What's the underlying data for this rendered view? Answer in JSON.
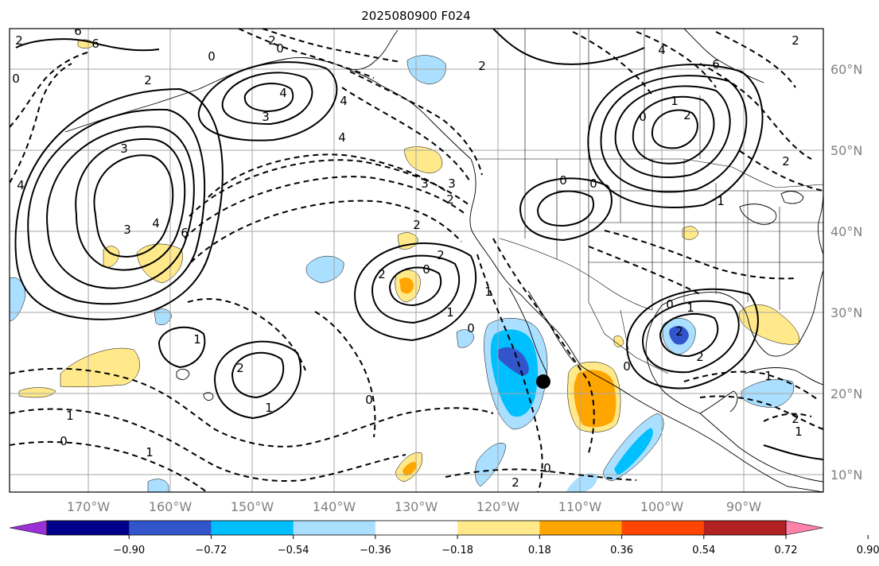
{
  "title": "2025080900 F024",
  "lon_labels": [
    "170°W",
    "160°W",
    "150°W",
    "140°W",
    "130°W",
    "120°W",
    "110°W",
    "100°W",
    "90°W"
  ],
  "lat_labels": [
    "60°N",
    "50°N",
    "40°N",
    "30°N",
    "20°N",
    "10°N"
  ],
  "colorbar": {
    "ticks": [
      "−0.90",
      "−0.72",
      "−0.54",
      "−0.36",
      "−0.18",
      "0.18",
      "0.36",
      "0.54",
      "0.72",
      "0.90"
    ],
    "colors": [
      "#9b30d8",
      "#00008b",
      "#3355cc",
      "#00bfff",
      "#aadfff",
      "#ffffff",
      "#ffe98a",
      "#ffa500",
      "#ff4500",
      "#b22222",
      "#ff82a9"
    ]
  },
  "marker": {
    "label": "location-marker"
  },
  "contour_labels": [
    "6",
    "0",
    "2",
    "0",
    "2",
    "4",
    "3",
    "4",
    "4",
    "3",
    "4",
    "3",
    "6",
    "4",
    "0",
    "3",
    "2",
    "2",
    "2",
    "0",
    "2",
    "1",
    "0",
    "1",
    "2",
    "1",
    "1",
    "0",
    "1",
    "0",
    "1",
    "2",
    "1",
    "0",
    "0",
    "1",
    "2",
    "2",
    "0",
    "4",
    "6",
    "2",
    "2",
    "1",
    "1",
    "0",
    "2",
    "2",
    "1",
    "0",
    "0",
    "2",
    "3",
    "2",
    "6"
  ]
}
